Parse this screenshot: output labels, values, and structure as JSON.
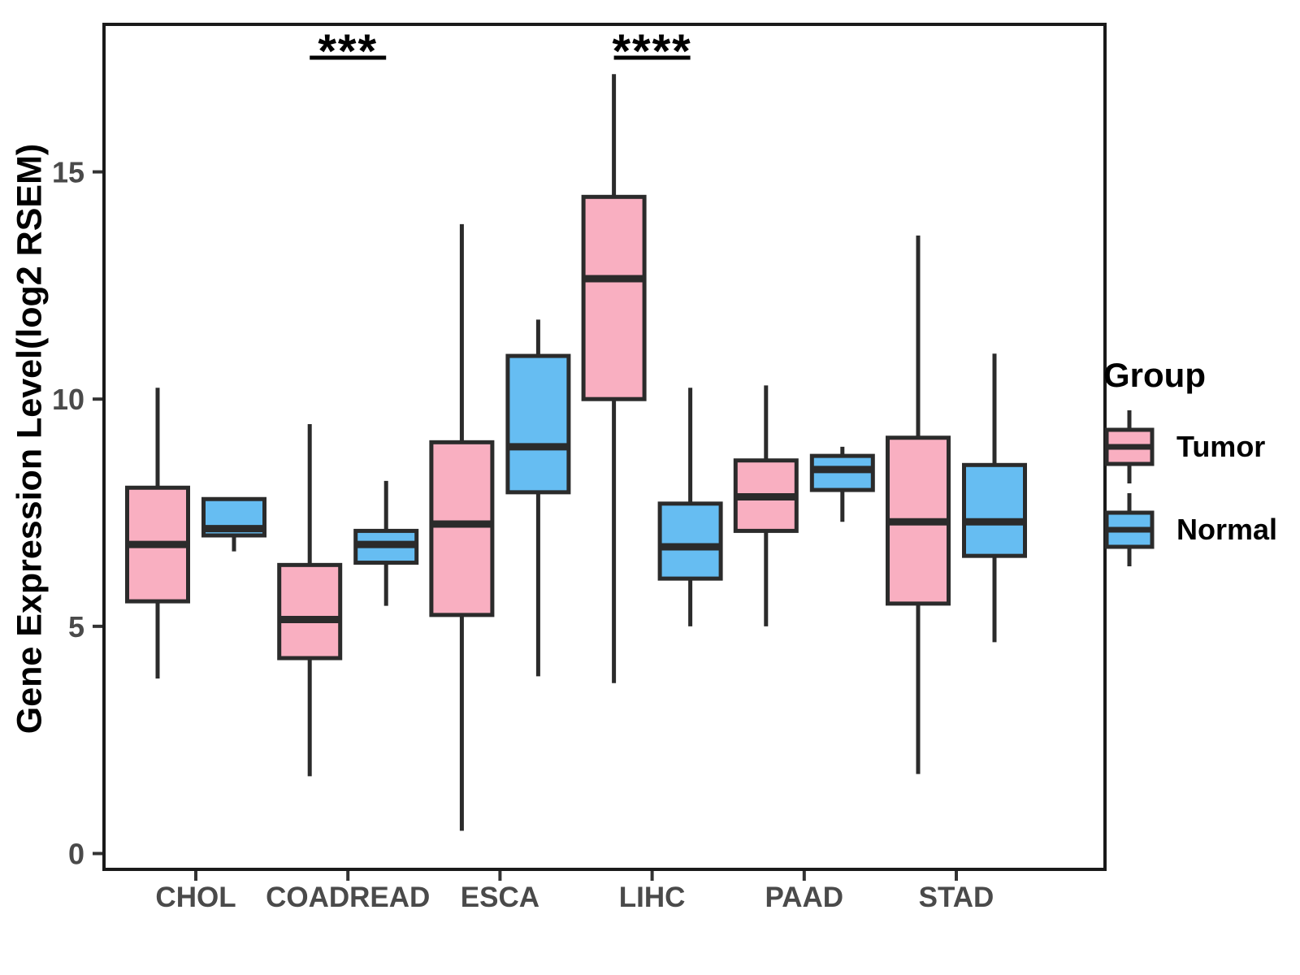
{
  "chart_data": {
    "type": "boxplot",
    "title": "",
    "ylabel": "Gene Expression Level(log2 RSEM)",
    "xlabel": "",
    "ylim": [
      -0.35,
      18.25
    ],
    "yticks": [
      0,
      5,
      10,
      15
    ],
    "grid": "off",
    "categories": [
      "CHOL",
      "COADREAD",
      "ESCA",
      "LIHC",
      "PAAD",
      "STAD"
    ],
    "series": [
      {
        "name": "Tumor",
        "fill": "#F9AFC1",
        "boxes": [
          {
            "category": "CHOL",
            "whisker_low": 3.85,
            "q1": 5.55,
            "median": 6.8,
            "q3": 8.05,
            "whisker_high": 10.25
          },
          {
            "category": "COADREAD",
            "whisker_low": 1.7,
            "q1": 4.3,
            "median": 5.15,
            "q3": 6.35,
            "whisker_high": 9.45
          },
          {
            "category": "ESCA",
            "whisker_low": 0.5,
            "q1": 5.25,
            "median": 7.25,
            "q3": 9.05,
            "whisker_high": 13.85
          },
          {
            "category": "LIHC",
            "whisker_low": 3.75,
            "q1": 10.0,
            "median": 12.65,
            "q3": 14.45,
            "whisker_high": 17.15
          },
          {
            "category": "PAAD",
            "whisker_low": 5.0,
            "q1": 7.1,
            "median": 7.85,
            "q3": 8.65,
            "whisker_high": 10.3
          },
          {
            "category": "STAD",
            "whisker_low": 1.75,
            "q1": 5.5,
            "median": 7.3,
            "q3": 9.15,
            "whisker_high": 13.6
          }
        ]
      },
      {
        "name": "Normal",
        "fill": "#66BDF2",
        "boxes": [
          {
            "category": "CHOL",
            "whisker_low": 6.65,
            "q1": 7.0,
            "median": 7.15,
            "q3": 7.8,
            "whisker_high": 7.8
          },
          {
            "category": "COADREAD",
            "whisker_low": 5.45,
            "q1": 6.4,
            "median": 6.8,
            "q3": 7.1,
            "whisker_high": 8.2
          },
          {
            "category": "ESCA",
            "whisker_low": 3.9,
            "q1": 7.95,
            "median": 8.95,
            "q3": 10.95,
            "whisker_high": 11.75
          },
          {
            "category": "LIHC",
            "whisker_low": 5.0,
            "q1": 6.05,
            "median": 6.75,
            "q3": 7.7,
            "whisker_high": 10.25
          },
          {
            "category": "PAAD",
            "whisker_low": 7.3,
            "q1": 8.0,
            "median": 8.45,
            "q3": 8.75,
            "whisker_high": 8.95
          },
          {
            "category": "STAD",
            "whisker_low": 4.65,
            "q1": 6.55,
            "median": 7.3,
            "q3": 8.55,
            "whisker_high": 11.0
          }
        ]
      }
    ],
    "annotations": [
      {
        "category": "COADREAD",
        "label": "***"
      },
      {
        "category": "LIHC",
        "label": "****"
      }
    ],
    "legend": {
      "title": "Group",
      "position": "right"
    },
    "colors": {
      "tumor_fill": "#F9AFC1",
      "normal_fill": "#66BDF2",
      "box_stroke": "#2B2B2B",
      "panel_border": "#1A1A1A",
      "axis_tick_text": "#4A4A4A",
      "annotation": "#000000",
      "background": "#FFFFFF"
    }
  }
}
